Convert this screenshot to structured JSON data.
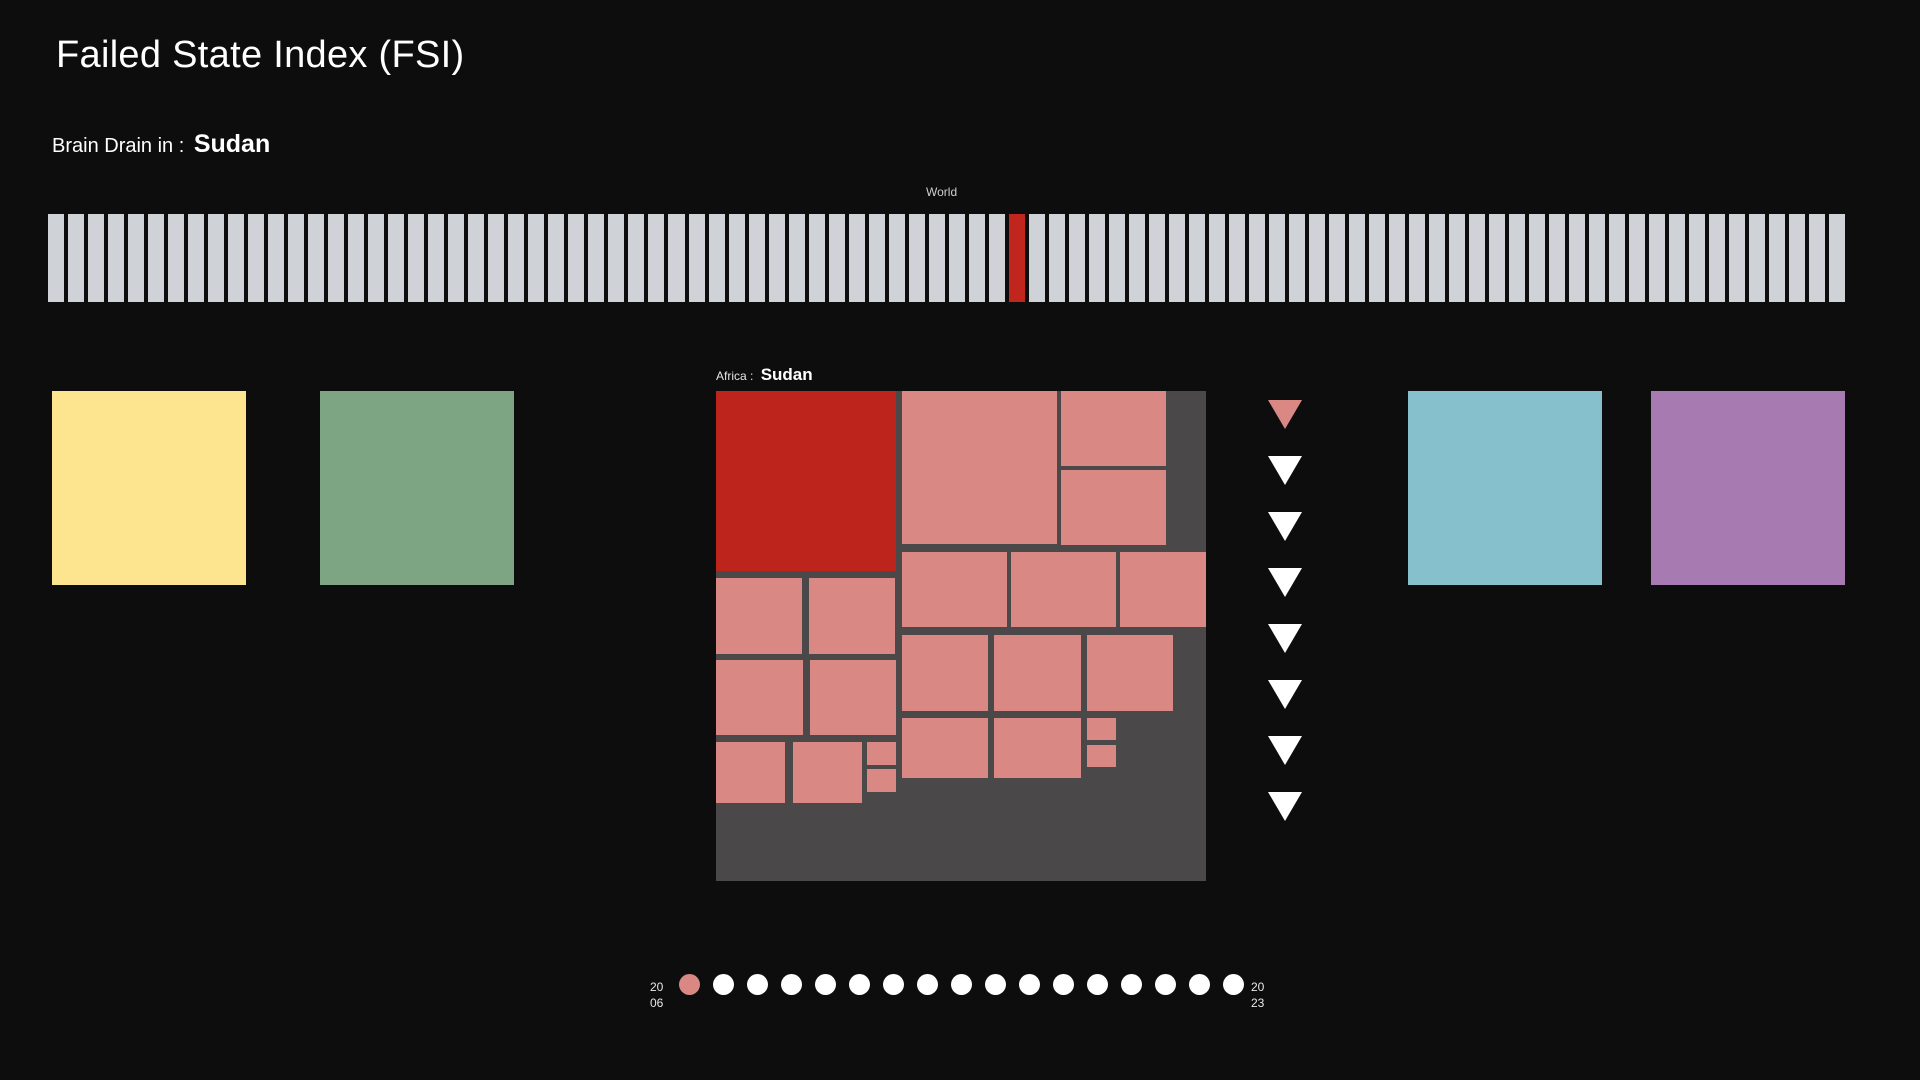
{
  "header": {
    "title": "Failed State Index (FSI)",
    "indicator_prefix": "Brain Drain in :",
    "country": "Sudan"
  },
  "world": {
    "label": "World",
    "bar_count": 90,
    "selected_index": 48,
    "bar_color": "#cfd2d6",
    "selected_color": "#c0261e"
  },
  "regions": [
    {
      "name": "region-yellow",
      "color": "#fde58f"
    },
    {
      "name": "region-green",
      "color": "#7da583"
    },
    {
      "name": "region-blue",
      "color": "#87c0cd"
    },
    {
      "name": "region-purple",
      "color": "#a77bb2"
    }
  ],
  "treemap": {
    "region_label": "Africa :",
    "country": "Sudan",
    "background": "#4a4849",
    "cell_color": "#d98884",
    "selected_color": "#bd241c"
  },
  "indicators": {
    "count": 8,
    "active_index": 0,
    "icon": "triangle-down-icon"
  },
  "timeline": {
    "start_year": {
      "line1": "20",
      "line2": "06"
    },
    "end_year": {
      "line1": "20",
      "line2": "23"
    },
    "dot_count": 17,
    "active_index": 0
  }
}
